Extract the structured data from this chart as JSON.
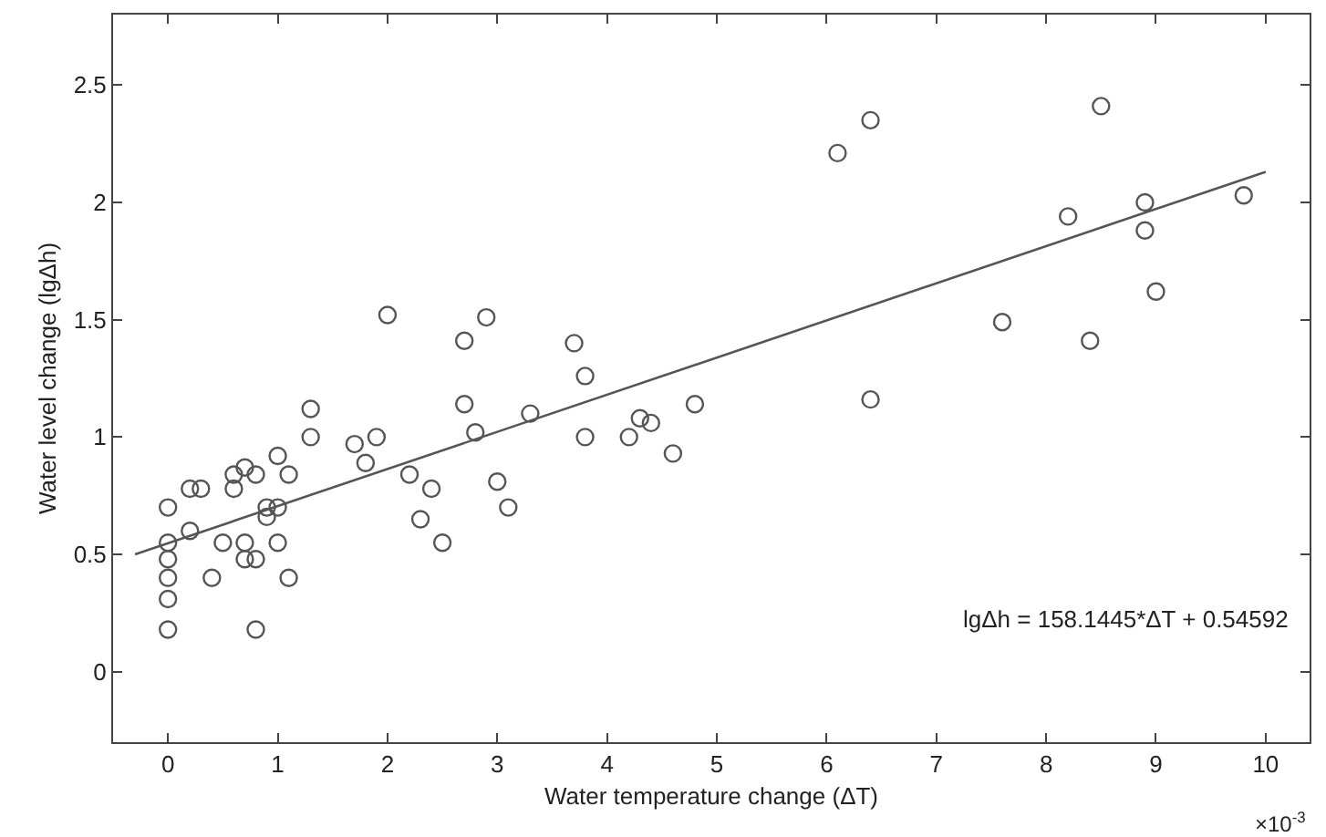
{
  "chart_data": {
    "type": "scatter",
    "xlabel": "Water temperature change (ΔT)",
    "ylabel": "Water level change (lgΔh)",
    "xlim": [
      -0.5,
      10.4
    ],
    "ylim": [
      -0.3,
      2.8
    ],
    "xticks": [
      0,
      1,
      2,
      3,
      4,
      5,
      6,
      7,
      8,
      9,
      10
    ],
    "yticks": [
      0,
      0.5,
      1,
      1.5,
      2,
      2.5
    ],
    "grid": false,
    "marker": "circle",
    "annotations": [
      "lgΔh = 158.1445*ΔT + 0.54592",
      "×10$^{-3}$"
    ],
    "series": [
      {
        "color": "#555555",
        "x": [
          0,
          0,
          0,
          0,
          0,
          0,
          0.2,
          0.2,
          0.3,
          0.4,
          0.5,
          0.6,
          0.6,
          0.7,
          0.7,
          0.7,
          0.8,
          0.8,
          0.8,
          0.9,
          0.9,
          1.0,
          1.0,
          1.0,
          1.1,
          1.1,
          1.3,
          1.3,
          1.7,
          1.8,
          1.9,
          2.0,
          2.2,
          2.3,
          2.4,
          2.5,
          2.7,
          2.7,
          2.8,
          2.9,
          3.0,
          3.1,
          3.3,
          3.7,
          3.8,
          3.8,
          4.2,
          4.3,
          4.4,
          4.6,
          4.8,
          6.1,
          6.4,
          6.4,
          7.6,
          8.2,
          8.4,
          8.5,
          8.9,
          8.9,
          9.0,
          9.8
        ],
        "values": [
          0.7,
          0.55,
          0.48,
          0.4,
          0.31,
          0.18,
          0.6,
          0.78,
          0.78,
          0.4,
          0.55,
          0.78,
          0.84,
          0.87,
          0.55,
          0.48,
          0.84,
          0.48,
          0.18,
          0.7,
          0.66,
          0.92,
          0.7,
          0.55,
          0.84,
          0.4,
          1.12,
          1.0,
          0.97,
          0.89,
          1.0,
          1.52,
          0.84,
          0.65,
          0.78,
          0.55,
          1.41,
          1.14,
          1.02,
          1.51,
          0.81,
          0.7,
          1.1,
          1.4,
          1.26,
          1.0,
          1.0,
          1.08,
          1.06,
          0.93,
          1.14,
          2.21,
          2.35,
          1.16,
          1.49,
          1.94,
          1.41,
          2.41,
          2.0,
          1.88,
          1.62,
          2.03
        ]
      },
      {
        "type": "line",
        "color": "#555555",
        "marker": "none",
        "x": [
          -0.3,
          10
        ],
        "values": [
          0.5,
          2.13
        ]
      }
    ]
  }
}
